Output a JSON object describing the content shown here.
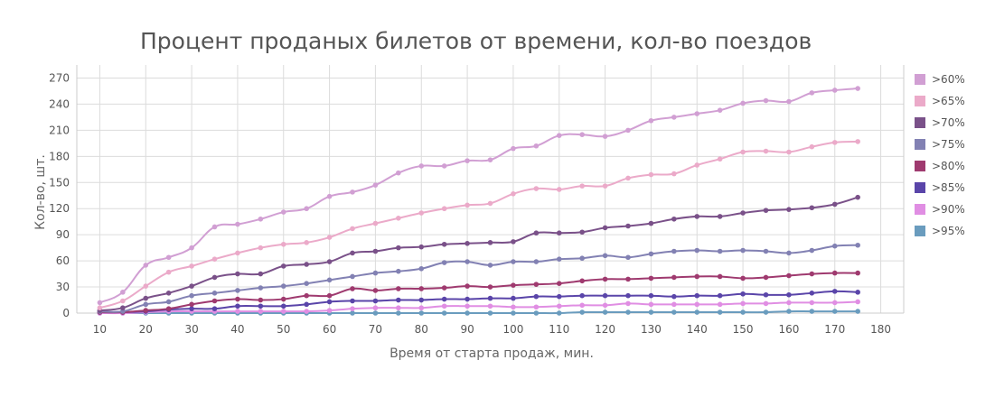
{
  "chart_data": {
    "type": "line",
    "title": "Процент проданых билетов от времени, кол-во поездов",
    "xlabel": "Время от старта продаж, мин.",
    "ylabel": "Кол-во, шт.",
    "xlim": [
      5,
      185
    ],
    "ylim": [
      0,
      285
    ],
    "x_ticks": [
      10,
      20,
      30,
      40,
      50,
      60,
      70,
      80,
      90,
      100,
      110,
      120,
      130,
      140,
      150,
      160,
      170,
      180
    ],
    "y_ticks": [
      0,
      30,
      60,
      90,
      120,
      150,
      180,
      210,
      240,
      270
    ],
    "grid": true,
    "legend_position": "right",
    "x": [
      10,
      15,
      20,
      25,
      30,
      35,
      40,
      45,
      50,
      55,
      60,
      65,
      70,
      75,
      80,
      85,
      90,
      95,
      100,
      105,
      110,
      115,
      120,
      125,
      130,
      135,
      140,
      145,
      150,
      155,
      160,
      165,
      170,
      175
    ],
    "series": [
      {
        "name": ">60%",
        "color": "#d19fd3",
        "values": [
          12,
          24,
          55,
          64,
          75,
          99,
          102,
          108,
          116,
          120,
          134,
          139,
          147,
          161,
          169,
          169,
          175,
          176,
          189,
          192,
          204,
          205,
          203,
          210,
          221,
          225,
          229,
          233,
          241,
          244,
          243,
          253,
          256,
          258
        ]
      },
      {
        "name": ">65%",
        "color": "#ebaac9",
        "values": [
          6,
          14,
          31,
          47,
          54,
          62,
          69,
          75,
          79,
          81,
          87,
          97,
          103,
          109,
          115,
          120,
          124,
          126,
          137,
          143,
          142,
          146,
          146,
          155,
          159,
          160,
          170,
          177,
          185,
          186,
          185,
          191,
          196,
          197
        ]
      },
      {
        "name": ">70%",
        "color": "#7a5189",
        "values": [
          3,
          6,
          17,
          23,
          31,
          41,
          45,
          45,
          54,
          56,
          59,
          69,
          71,
          75,
          76,
          79,
          80,
          81,
          82,
          92,
          92,
          93,
          98,
          100,
          103,
          108,
          111,
          111,
          115,
          118,
          119,
          121,
          125,
          133
        ]
      },
      {
        "name": ">75%",
        "color": "#8281b3",
        "values": [
          2,
          2,
          10,
          13,
          20,
          23,
          26,
          29,
          31,
          34,
          38,
          42,
          46,
          48,
          51,
          58,
          59,
          55,
          59,
          59,
          62,
          63,
          66,
          64,
          68,
          71,
          72,
          71,
          72,
          71,
          69,
          72,
          77,
          78
        ]
      },
      {
        "name": ">80%",
        "color": "#9f3a6f",
        "values": [
          1,
          1,
          3,
          5,
          10,
          14,
          16,
          15,
          16,
          20,
          20,
          28,
          26,
          28,
          28,
          29,
          31,
          30,
          32,
          33,
          34,
          37,
          39,
          39,
          40,
          41,
          42,
          42,
          40,
          41,
          43,
          45,
          46,
          46
        ]
      },
      {
        "name": ">85%",
        "color": "#5a45a9",
        "values": [
          1,
          1,
          2,
          4,
          5,
          5,
          8,
          8,
          8,
          10,
          13,
          14,
          14,
          15,
          15,
          16,
          16,
          17,
          17,
          19,
          19,
          20,
          20,
          20,
          20,
          19,
          20,
          20,
          22,
          21,
          21,
          23,
          25,
          24
        ]
      },
      {
        "name": ">90%",
        "color": "#e08ee3",
        "values": [
          0,
          0,
          1,
          2,
          2,
          2,
          2,
          2,
          2,
          2,
          3,
          5,
          6,
          6,
          6,
          8,
          8,
          8,
          7,
          7,
          8,
          9,
          9,
          11,
          10,
          10,
          10,
          10,
          11,
          11,
          12,
          12,
          12,
          13
        ]
      },
      {
        "name": ">95%",
        "color": "#6a9cbe",
        "values": [
          0,
          0,
          0,
          0,
          0,
          0,
          0,
          0,
          0,
          0,
          0,
          0,
          0,
          0,
          0,
          0,
          0,
          0,
          0,
          0,
          0,
          1,
          1,
          1,
          1,
          1,
          1,
          1,
          1,
          1,
          2,
          2,
          2,
          2
        ]
      }
    ]
  }
}
